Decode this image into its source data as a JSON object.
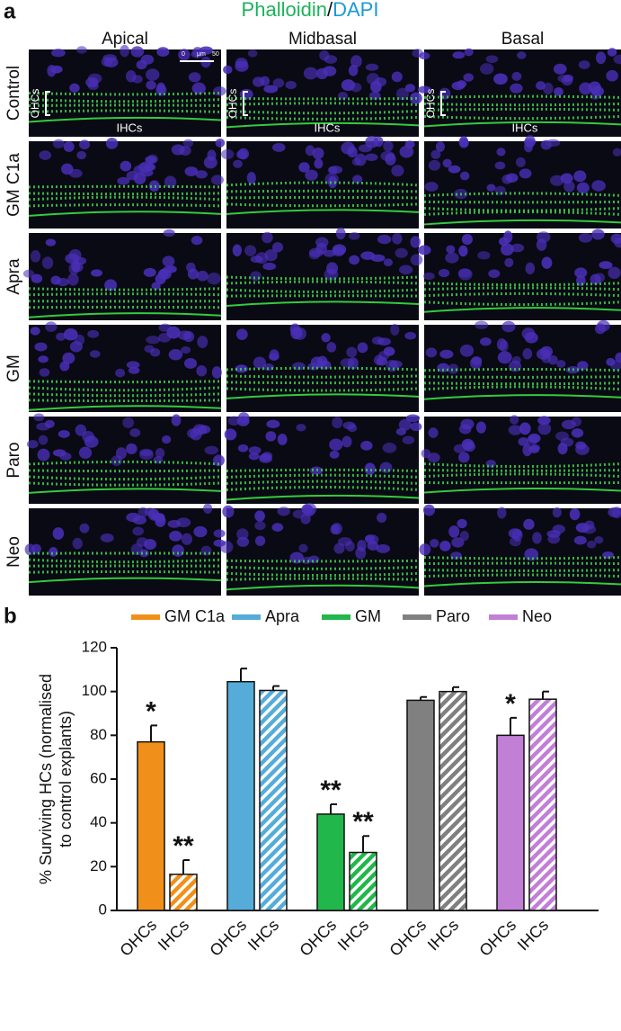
{
  "panel_a": {
    "label": "a",
    "title_parts": [
      {
        "text": "Phalloidin",
        "color": "#1db35a"
      },
      {
        "text": "/",
        "color": "#111111"
      },
      {
        "text": "DAPI",
        "color": "#1a9ad6"
      }
    ],
    "columns": [
      "Apical",
      "Midbasal",
      "Basal"
    ],
    "rows": [
      "Control",
      "GM C1a",
      "Apra",
      "GM",
      "Paro",
      "Neo"
    ],
    "scale_bar": [
      "0",
      "μm",
      "50"
    ],
    "image_labels": [
      [
        "OHCs",
        "IHCs"
      ],
      [
        "OHCs",
        "IHCs"
      ],
      [
        "OHCs",
        "IHCs"
      ]
    ]
  },
  "chart_data": {
    "type": "bar",
    "label": "b",
    "y_label": [
      "% Surviving HCs (normalised",
      "to control explants)"
    ],
    "categories": [
      "OHCs",
      "IHCs"
    ],
    "hatch": [
      false,
      true
    ],
    "series": [
      {
        "name": "GM C1a",
        "color": "#f0901a",
        "values": [
          77,
          16.5
        ],
        "errors": [
          7.5,
          6.5
        ],
        "significance": [
          "*",
          "**"
        ]
      },
      {
        "name": "Apra",
        "color": "#55acd9",
        "values": [
          104.5,
          100.5
        ],
        "errors": [
          6,
          2
        ],
        "significance": [
          null,
          null
        ]
      },
      {
        "name": "GM",
        "color": "#22b74a",
        "values": [
          44,
          26.5
        ],
        "errors": [
          4.5,
          7.5
        ],
        "significance": [
          "**",
          "**"
        ]
      },
      {
        "name": "Paro",
        "color": "#808080",
        "values": [
          96,
          100
        ],
        "errors": [
          1.5,
          2
        ],
        "significance": [
          null,
          null
        ]
      },
      {
        "name": "Neo",
        "color": "#c27fd6",
        "values": [
          80,
          96.5
        ],
        "errors": [
          8,
          3.5
        ],
        "significance": [
          "*",
          null
        ]
      }
    ],
    "ylim": [
      0,
      120
    ],
    "yticks": [
      0,
      20,
      40,
      60,
      80,
      100,
      120
    ],
    "legend": "top",
    "grid": false
  }
}
